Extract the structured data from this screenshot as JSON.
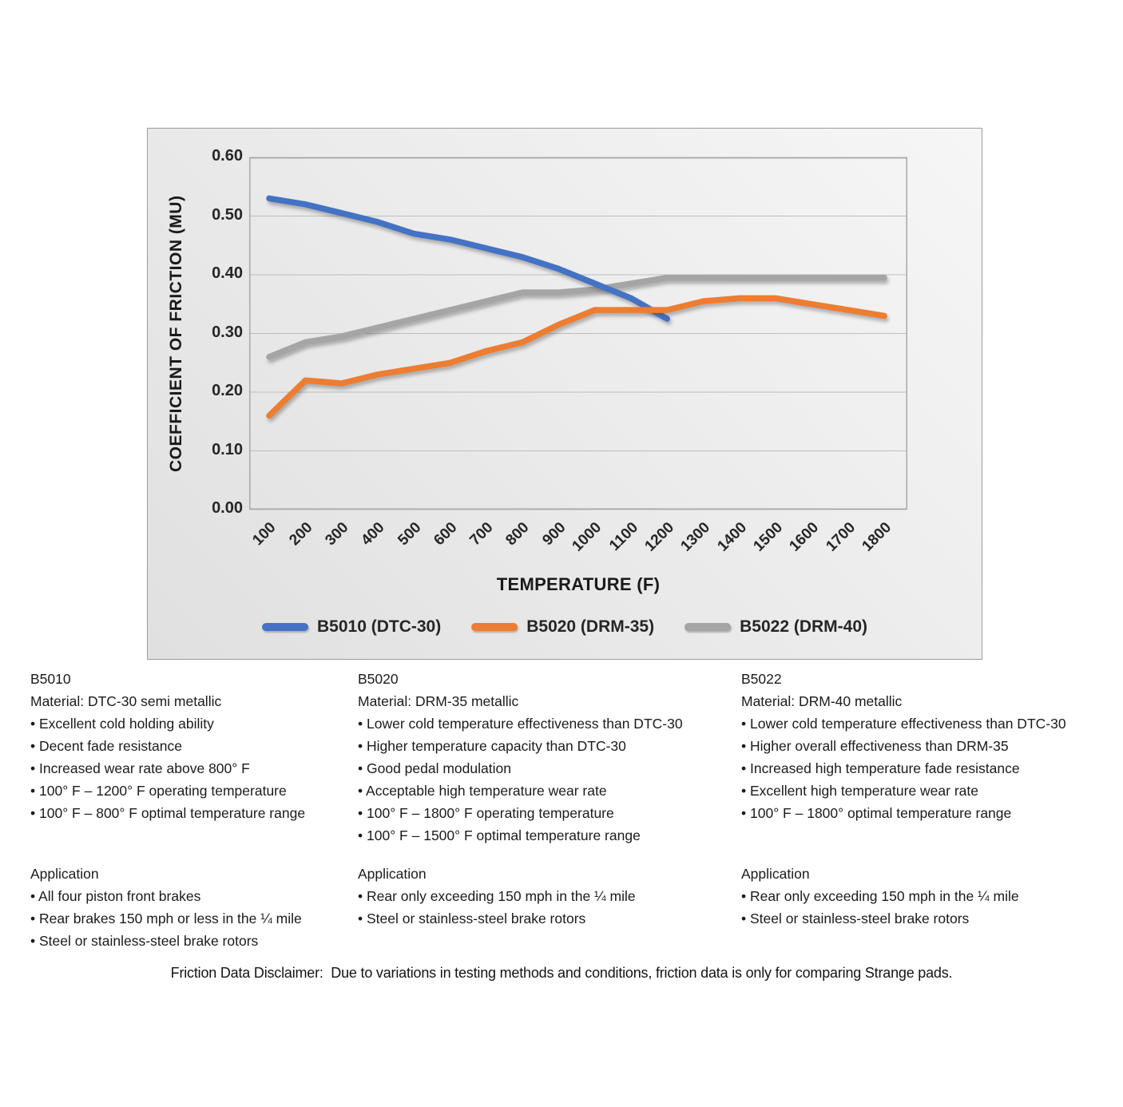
{
  "chart_data": {
    "type": "line",
    "title": "",
    "xlabel": "TEMPERATURE (F)",
    "ylabel": "COEFFICIENT OF FRICTION (MU)",
    "x": [
      100,
      200,
      300,
      400,
      500,
      600,
      700,
      800,
      900,
      1000,
      1100,
      1200,
      1300,
      1400,
      1500,
      1600,
      1700,
      1800
    ],
    "x_tick_labels": [
      "100",
      "200",
      "300",
      "400",
      "500",
      "600",
      "700",
      "800",
      "900",
      "1000",
      "1100",
      "1200",
      "1300",
      "1400",
      "1500",
      "1600",
      "1700",
      "1800"
    ],
    "ylim": [
      0,
      0.6
    ],
    "y_tick_labels": [
      "0.00",
      "0.10",
      "0.20",
      "0.30",
      "0.40",
      "0.50",
      "0.60"
    ],
    "grid": true,
    "legend_position": "bottom",
    "series": [
      {
        "name": "B5010 (DTC-30)",
        "color": "#4472C4",
        "values": [
          0.53,
          0.52,
          0.505,
          0.49,
          0.47,
          0.46,
          0.445,
          0.43,
          0.41,
          0.385,
          0.36,
          0.325,
          null,
          null,
          null,
          null,
          null,
          null
        ]
      },
      {
        "name": "B5020 (DRM-35)",
        "color": "#ED7D31",
        "values": [
          0.16,
          0.22,
          0.215,
          0.23,
          0.24,
          0.25,
          0.27,
          0.285,
          0.315,
          0.34,
          0.34,
          0.34,
          0.355,
          0.36,
          0.36,
          0.35,
          0.34,
          0.33
        ]
      },
      {
        "name": "B5022 (DRM-40)",
        "color": "#A5A5A5",
        "values": [
          0.26,
          0.285,
          0.295,
          0.31,
          0.325,
          0.34,
          0.355,
          0.37,
          0.37,
          0.375,
          0.385,
          0.395,
          0.395,
          0.395,
          0.395,
          0.395,
          0.395,
          0.395
        ]
      }
    ]
  },
  "products": [
    {
      "model": "B5010",
      "material": "Material: DTC-30 semi metallic",
      "features": [
        "Excellent cold holding ability",
        "Decent fade resistance",
        "Increased wear rate above 800° F",
        "100° F – 1200° F operating temperature",
        "100° F – 800° F optimal temperature range"
      ],
      "application_label": "Application",
      "applications": [
        "All four piston front brakes",
        "Rear brakes 150 mph or less in the ¼ mile",
        "Steel or stainless-steel brake rotors"
      ]
    },
    {
      "model": "B5020",
      "material": "Material: DRM-35 metallic",
      "features": [
        "Lower cold temperature effectiveness than DTC-30",
        "Higher temperature capacity than DTC-30",
        "Good pedal modulation",
        "Acceptable high temperature wear rate",
        "100° F – 1800° F operating temperature",
        "100° F – 1500° F optimal temperature range"
      ],
      "application_label": "Application",
      "applications": [
        "Rear only exceeding 150 mph in the ¼ mile",
        "Steel or stainless-steel brake rotors"
      ]
    },
    {
      "model": "B5022",
      "material": "Material: DRM-40 metallic",
      "features": [
        "Lower cold temperature effectiveness than DTC-30",
        "Higher overall effectiveness than DRM-35",
        "Increased high temperature fade resistance",
        "Excellent high temperature wear rate",
        "100° F – 1800° optimal temperature range"
      ],
      "application_label": "Application",
      "applications": [
        "Rear only exceeding 150 mph in the ¼ mile",
        "Steel or stainless-steel brake rotors"
      ]
    }
  ],
  "disclaimer": "Friction Data Disclaimer:  Due to variations in testing methods and conditions, friction data is only for comparing Strange pads."
}
